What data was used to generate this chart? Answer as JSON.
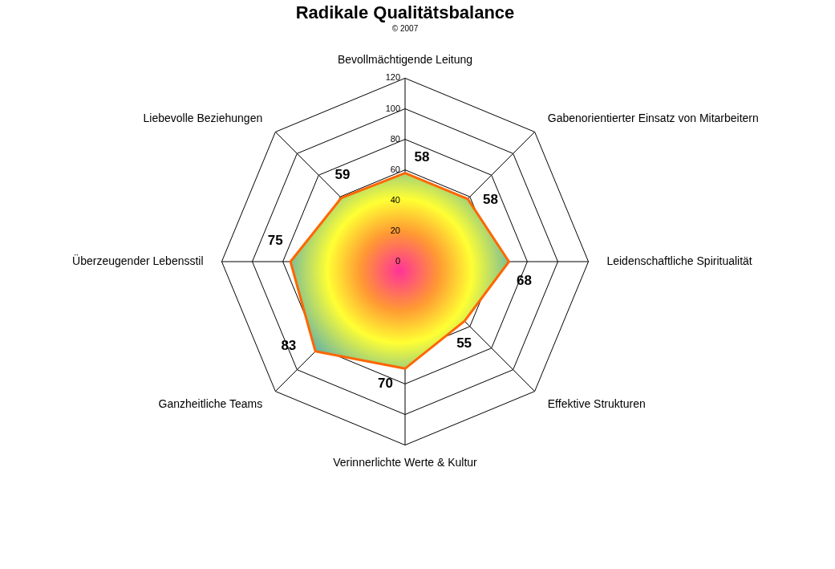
{
  "chart_data": {
    "type": "radar",
    "title": "Radikale Qualitätsbalance",
    "subtitle": "© 2007",
    "categories": [
      "Bevollmächtigende Leitung",
      "Gabenorientierter Einsatz von Mitarbeitern",
      "Leidenschaftliche Spiritualität",
      "Effektive Strukturen",
      "Verinnerlichte Werte & Kultur",
      "Ganzheitliche Teams",
      "Überzeugender Lebensstil",
      "Liebevolle Beziehungen"
    ],
    "series": [
      {
        "color": "#ff6600",
        "values": [
          58,
          58,
          68,
          55,
          70,
          83,
          75,
          59
        ]
      }
    ],
    "ylim": [
      0,
      120
    ],
    "yticks": [
      0,
      20,
      40,
      60,
      80,
      100,
      120
    ],
    "data_labels": true,
    "grid": true
  }
}
